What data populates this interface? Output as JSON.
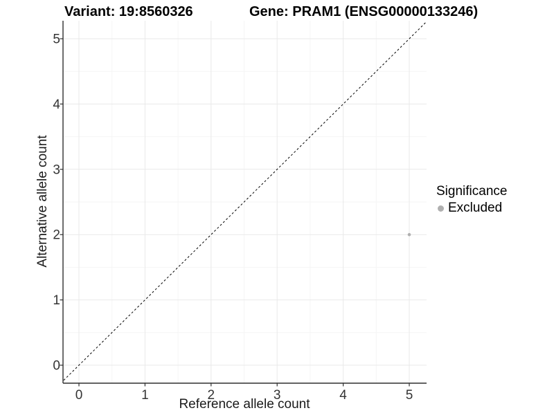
{
  "chart_data": {
    "type": "scatter",
    "titles": {
      "variant": "Variant: 19:8560326",
      "gene": "Gene: PRAM1 (ENSG00000133246)"
    },
    "xlabel": "Reference allele count",
    "ylabel": "Alternative allele count",
    "xticks": [
      0,
      1,
      2,
      3,
      4,
      5
    ],
    "yticks": [
      0,
      1,
      2,
      3,
      4,
      5
    ],
    "xlim": [
      -0.25,
      5.25
    ],
    "ylim": [
      -0.28,
      5.28
    ],
    "grid": {
      "major": true,
      "minor": true
    },
    "reference_line": {
      "type": "identity",
      "equation": "y = x",
      "style": "dashed",
      "color": "#000000"
    },
    "series": [
      {
        "name": "Excluded",
        "color": "#b0b0b0",
        "points": [
          {
            "x": 5,
            "y": 2
          }
        ]
      }
    ],
    "legend": {
      "title": "Significance",
      "position": "right",
      "items": [
        {
          "label": "Excluded",
          "color": "#b0b0b0"
        }
      ]
    },
    "colors": {
      "background": "#ffffff",
      "grid_major": "#e9e9e9",
      "grid_minor": "#f5f5f5",
      "axis_line": "#2e2e2e",
      "tick_text": "#333333",
      "title_text": "#000000"
    }
  }
}
